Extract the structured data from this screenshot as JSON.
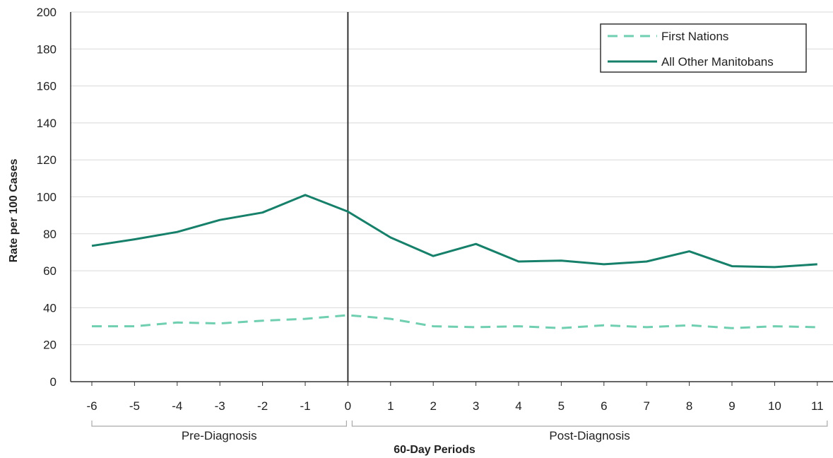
{
  "chart_data": {
    "type": "line",
    "xlabel": "60-Day Periods",
    "ylabel": "Rate per 100 Cases",
    "ylim": [
      0,
      200
    ],
    "yticks": [
      0,
      20,
      40,
      60,
      80,
      100,
      120,
      140,
      160,
      180,
      200
    ],
    "x": [
      -6,
      -5,
      -4,
      -3,
      -2,
      -1,
      0,
      1,
      2,
      3,
      4,
      5,
      6,
      7,
      8,
      9,
      10,
      11
    ],
    "xtick_labels": [
      "-6",
      "-5",
      "-4",
      "-3",
      "-2",
      "-1",
      "0",
      "1",
      "2",
      "3",
      "4",
      "5",
      "6",
      "7",
      "8",
      "9",
      "10",
      "11"
    ],
    "grid": "horizontal",
    "legend_position": "top-right",
    "reference_line_x": 0,
    "groups": [
      {
        "label": "Pre-Diagnosis",
        "from": -6,
        "to": 0
      },
      {
        "label": "Post-Diagnosis",
        "from": 0,
        "to": 11
      }
    ],
    "series": [
      {
        "name": "First Nations",
        "style": "dashed",
        "color": "#6fcfb0",
        "values": [
          30,
          30,
          32,
          31.5,
          33,
          34,
          36,
          34,
          30,
          29.5,
          30,
          29,
          30.5,
          29.5,
          30.5,
          29,
          30,
          29.5
        ]
      },
      {
        "name": "All Other Manitobans",
        "style": "solid",
        "color": "#16806a",
        "values": [
          73.5,
          77,
          81,
          87.5,
          91.5,
          101,
          92,
          78,
          68,
          74.5,
          65,
          65.5,
          63.5,
          65,
          70.5,
          62.5,
          62,
          63.5
        ]
      }
    ]
  }
}
